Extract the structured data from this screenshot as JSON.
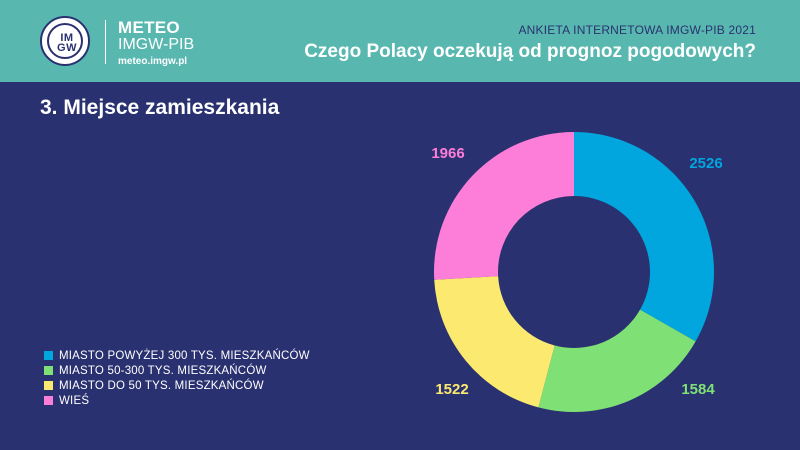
{
  "header": {
    "brand_title": "METEO",
    "brand_subtitle": "IMGW-PIB",
    "brand_url": "meteo.imgw.pl",
    "logo_text_top": "IM",
    "logo_text_bottom": "GW",
    "survey": "ANKIETA INTERNETOWA IMGW-PIB 2021",
    "headline": "Czego Polacy oczekują od prognoz pogodowych?"
  },
  "section_title": "3. Miejsce zamieszkania",
  "colors": {
    "background": "#2a3170",
    "header": "#58b8b0"
  },
  "chart_data": {
    "type": "pie",
    "variant": "donut",
    "categories": [
      "MIASTO POWYŻEJ 300 TYS. MIESZKAŃCÓW",
      "MIASTO 50-300 TYS. MIESZKAŃCÓW",
      "MIASTO DO 50 TYS. MIESZKAŃCÓW",
      "WIEŚ"
    ],
    "values": [
      2526,
      1584,
      1522,
      1966
    ],
    "colors": [
      "#00a6dd",
      "#7fe175",
      "#fbea6f",
      "#fd7ed8"
    ],
    "legend_placement": "bottom-left"
  }
}
